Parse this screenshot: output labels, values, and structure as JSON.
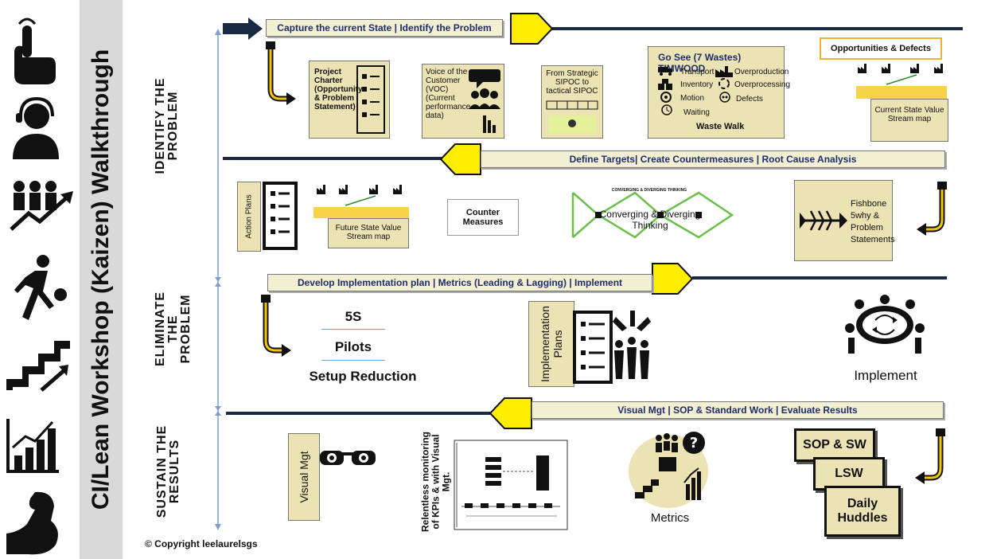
{
  "title": "CI/Lean Workshop (Kaizen) Walkthrough",
  "phases": {
    "identify": "IDENTIFY THE PROBLEM",
    "eliminate": "ELIMINATE THE PROBLEM",
    "sustain": "SUSTAIN THE RESULTS"
  },
  "banners": {
    "b1": "Capture the current State | Identify the Problem",
    "b2": "Define Targets| Create Countermeasures | Root Cause Analysis",
    "b3": "Develop Implementation plan | Metrics (Leading & Lagging) | Implement",
    "b4": "Visual Mgt | SOP & Standard Work | Evaluate Results"
  },
  "row1": {
    "project_charter": "Project Charter (Opportunity & Problem Statement)",
    "voc": "Voice of the Customer (VOC) (Current performance data)",
    "sipoc": "From Strategic SIPOC to tactical SIPOC",
    "waste_title": "Go See (7 Wastes) TIMWOOD",
    "wastes": [
      "Transport",
      "Inventory",
      "Motion",
      "Waiting",
      "Overproduction",
      "Overprocessing",
      "Defects"
    ],
    "waste_walk": "Waste Walk",
    "opportunities": "Opportunities & Defects",
    "current_vsm": "Current State Value Stream map"
  },
  "row2": {
    "action_plans": "Action Plans",
    "future_vsm": "Future State Value Stream map",
    "counter_measures": "Counter Measures",
    "converging_header": "CONVERGING & DIVERGING THINKING",
    "converging": "Converging & Diverging Thinking",
    "fishbone": "Fishbone 5why & Problem Statements"
  },
  "row3": {
    "fives": "5S",
    "pilots": "Pilots",
    "setup": "Setup Reduction",
    "impl_plans": "Implementation Plans",
    "implement": "Implement"
  },
  "row4": {
    "visual_mgt": "Visual Mgt",
    "kpi_text": "Relentless monitoring of KPIs & with Visual Mgt.",
    "metrics": "Metrics",
    "sop": "SOP & SW",
    "lsw": "LSW",
    "daily": "Daily Huddles"
  },
  "copyright": "© Copyright leelaurelsgs",
  "colors": {
    "yellow": "#ffee00",
    "khaki": "#ece3b4",
    "banner_text": "#1f2d6b",
    "line": "#1a2a44"
  }
}
